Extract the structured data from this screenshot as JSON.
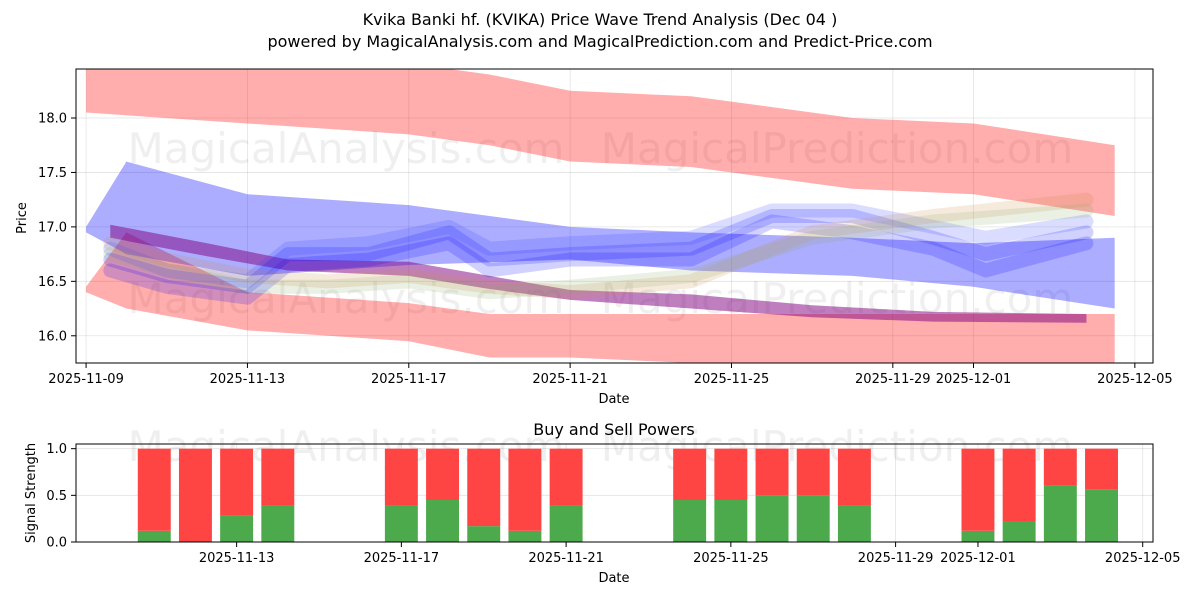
{
  "watermarks": [
    "MagicalAnalysis.com",
    "MagicalPrediction.com"
  ],
  "chart_data": [
    {
      "type": "area",
      "title": "Kvika Banki hf. (KVIKA) Price Wave Trend Analysis (Dec 04 )",
      "subtitle": "powered by MagicalAnalysis.com and MagicalPrediction.com and Predict-Price.com",
      "xlabel": "Date",
      "ylabel": "Price",
      "xlim": [
        "2025-11-09",
        "2025-12-05"
      ],
      "ylim": [
        15.75,
        18.45
      ],
      "x_ticks": [
        "2025-11-09",
        "2025-11-13",
        "2025-11-17",
        "2025-11-21",
        "2025-11-25",
        "2025-11-29",
        "2025-12-01",
        "2025-12-05"
      ],
      "y_ticks": [
        16.0,
        16.5,
        17.0,
        17.5,
        18.0
      ],
      "grid": true,
      "bands": [
        {
          "name": "upper red band",
          "color": "#ff0000",
          "x": [
            0,
            4,
            8,
            10,
            12,
            15,
            19,
            22,
            25.5
          ],
          "upper": [
            18.5,
            18.55,
            18.5,
            18.4,
            18.25,
            18.2,
            18.0,
            17.95,
            17.75
          ],
          "lower": [
            18.05,
            17.95,
            17.85,
            17.75,
            17.6,
            17.55,
            17.35,
            17.3,
            17.1
          ]
        },
        {
          "name": "lower red band",
          "color": "#ff0000",
          "x": [
            0,
            1,
            4,
            8,
            10,
            12,
            15,
            19,
            22,
            25.5
          ],
          "upper": [
            16.45,
            16.95,
            16.4,
            16.3,
            16.2,
            16.2,
            16.2,
            16.2,
            16.2,
            16.2
          ],
          "lower": [
            16.4,
            16.25,
            16.05,
            15.95,
            15.8,
            15.8,
            15.75,
            15.7,
            15.72,
            15.75
          ]
        },
        {
          "name": "blue band",
          "color": "#0000ff",
          "x": [
            0,
            1,
            4,
            6,
            8,
            12,
            15,
            19,
            22,
            25.5
          ],
          "upper": [
            17.0,
            17.6,
            17.3,
            17.25,
            17.2,
            17.0,
            16.95,
            16.9,
            16.85,
            16.9
          ],
          "lower": [
            16.95,
            16.75,
            16.55,
            16.6,
            16.65,
            16.7,
            16.6,
            16.55,
            16.45,
            16.25
          ]
        },
        {
          "name": "purple trend band",
          "color": "#800080",
          "x": [
            0.6,
            3,
            5,
            8,
            10,
            12,
            15,
            18,
            21,
            24.8
          ],
          "upper": [
            17.02,
            16.85,
            16.7,
            16.68,
            16.55,
            16.42,
            16.38,
            16.28,
            16.22,
            16.2
          ],
          "lower": [
            16.9,
            16.73,
            16.6,
            16.55,
            16.43,
            16.33,
            16.25,
            16.17,
            16.13,
            16.12
          ]
        }
      ],
      "wave_lines": [
        {
          "name": "wave 1",
          "color": "#0000ff",
          "x": [
            0.6,
            2,
            4,
            5,
            7,
            9,
            10,
            12,
            15,
            17,
            19,
            21,
            22.3,
            24.8
          ],
          "y": [
            16.7,
            16.55,
            16.45,
            16.75,
            16.75,
            16.95,
            16.7,
            16.75,
            16.8,
            17.1,
            17.1,
            16.9,
            16.75,
            16.95
          ]
        },
        {
          "name": "wave 2",
          "color": "#0000ff",
          "x": [
            0.6,
            2,
            4,
            5,
            7,
            9,
            10,
            12,
            15,
            17,
            19,
            21,
            22.3,
            24.8
          ],
          "y": [
            16.6,
            16.45,
            16.35,
            16.65,
            16.7,
            16.85,
            16.6,
            16.7,
            16.7,
            17.05,
            16.95,
            16.8,
            16.6,
            16.85
          ]
        },
        {
          "name": "wave 3",
          "color": "#3344ff",
          "x": [
            0.6,
            2,
            4,
            5,
            7,
            9,
            10,
            12,
            15,
            17,
            19,
            21,
            22.3,
            24.8
          ],
          "y": [
            16.8,
            16.6,
            16.5,
            16.8,
            16.85,
            17.0,
            16.8,
            16.85,
            16.9,
            17.15,
            17.15,
            17.0,
            16.9,
            17.05
          ]
        },
        {
          "name": "wave 4",
          "color": "#cc8844",
          "x": [
            0.6,
            2,
            4,
            6,
            8,
            10,
            12,
            15,
            18,
            21,
            24.8
          ],
          "y": [
            16.85,
            16.7,
            16.55,
            16.5,
            16.55,
            16.45,
            16.4,
            16.5,
            16.95,
            17.1,
            17.25
          ]
        },
        {
          "name": "wave 5",
          "color": "#88aa66",
          "x": [
            0.6,
            2,
            4,
            6,
            8,
            10,
            12,
            15,
            18,
            21,
            24.8
          ],
          "y": [
            16.75,
            16.6,
            16.45,
            16.45,
            16.5,
            16.4,
            16.45,
            16.55,
            16.9,
            17.05,
            17.15
          ]
        }
      ]
    },
    {
      "type": "bar",
      "title": "Buy and Sell Powers",
      "xlabel": "Date",
      "ylabel": "Signal Strength",
      "xlim": [
        "2025-11-09",
        "2025-12-05"
      ],
      "ylim": [
        0,
        1.05
      ],
      "x_ticks": [
        "2025-11-13",
        "2025-11-17",
        "2025-11-21",
        "2025-11-25",
        "2025-11-29",
        "2025-12-01",
        "2025-12-05"
      ],
      "y_ticks": [
        0.0,
        0.5,
        1.0
      ],
      "grid": true,
      "series": [
        {
          "name": "Buy",
          "color": "#4caa4c"
        },
        {
          "name": "Sell",
          "color": "#ff4444"
        }
      ],
      "x": [
        "2025-11-11",
        "2025-11-12",
        "2025-11-13",
        "2025-11-14",
        "2025-11-17",
        "2025-11-18",
        "2025-11-19",
        "2025-11-20",
        "2025-11-21",
        "2025-11-24",
        "2025-11-25",
        "2025-11-26",
        "2025-11-27",
        "2025-11-28",
        "2025-12-01",
        "2025-12-02",
        "2025-12-03",
        "2025-12-04"
      ],
      "buy": [
        0.12,
        0.0,
        0.28,
        0.39,
        0.39,
        0.45,
        0.17,
        0.12,
        0.39,
        0.45,
        0.45,
        0.5,
        0.5,
        0.39,
        0.12,
        0.22,
        0.61,
        0.56
      ],
      "sell": [
        0.88,
        1.0,
        0.72,
        0.61,
        0.61,
        0.55,
        0.83,
        0.88,
        0.61,
        0.55,
        0.55,
        0.5,
        0.5,
        0.61,
        0.88,
        0.78,
        0.39,
        0.44
      ]
    }
  ]
}
